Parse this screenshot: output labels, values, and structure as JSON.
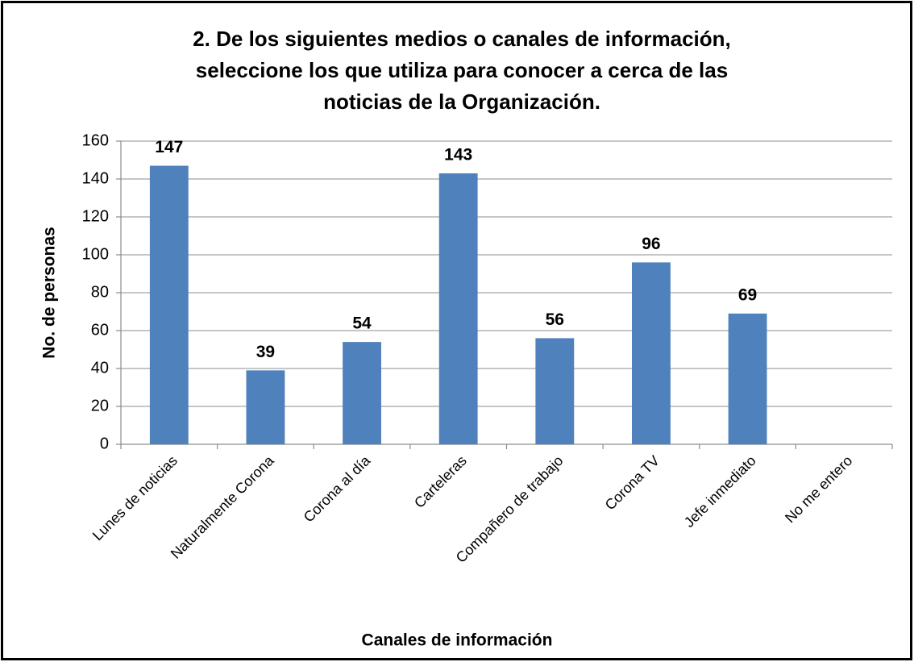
{
  "chart_data": {
    "type": "bar",
    "title": [
      "2. De los siguientes medios o canales de información,",
      "seleccione los que utiliza para conocer a cerca de las",
      "noticias de la Organización."
    ],
    "x_label": "Canales de información",
    "y_label": "No. de personas",
    "categories": [
      "Lunes de noticias",
      "Naturalmente Corona",
      "Corona al día",
      "Carteleras",
      "Compañero de trabajo",
      "Corona TV",
      "Jefe inmediato",
      "No me entero"
    ],
    "values": [
      147,
      39,
      54,
      143,
      56,
      96,
      69,
      null
    ],
    "color": "#4f81bd",
    "ylim": [
      0,
      160
    ],
    "yticks": [
      0,
      20,
      40,
      60,
      80,
      100,
      120,
      140,
      160
    ],
    "grid": true
  }
}
